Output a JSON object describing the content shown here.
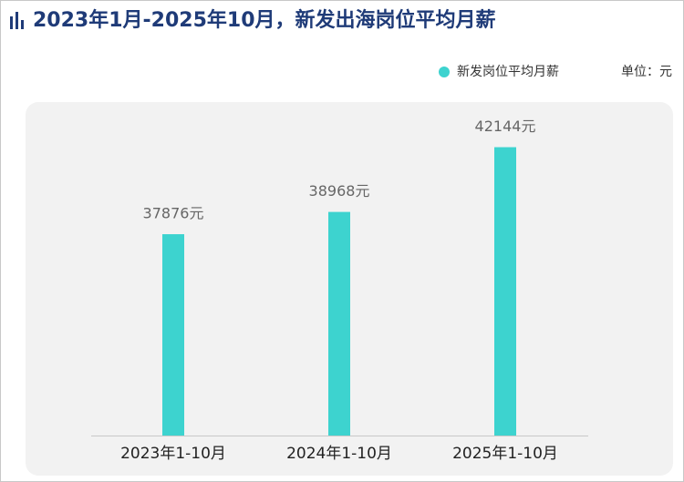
{
  "chart_data": {
    "type": "bar",
    "title": "2023年1月-2025年10月，新发出海岗位平均月薪",
    "unit_note": "单位：元",
    "categories": [
      "2023年1-10月",
      "2024年1-10月",
      "2025年1-10月"
    ],
    "series": [
      {
        "name": "新发岗位平均月薪",
        "color": "#3dd3cf",
        "values": [
          37876,
          38968,
          42144
        ],
        "value_labels": [
          "37876元",
          "38968元",
          "42144元"
        ]
      }
    ],
    "ylim": [
      28000,
      44000
    ],
    "legend": "top-right"
  }
}
